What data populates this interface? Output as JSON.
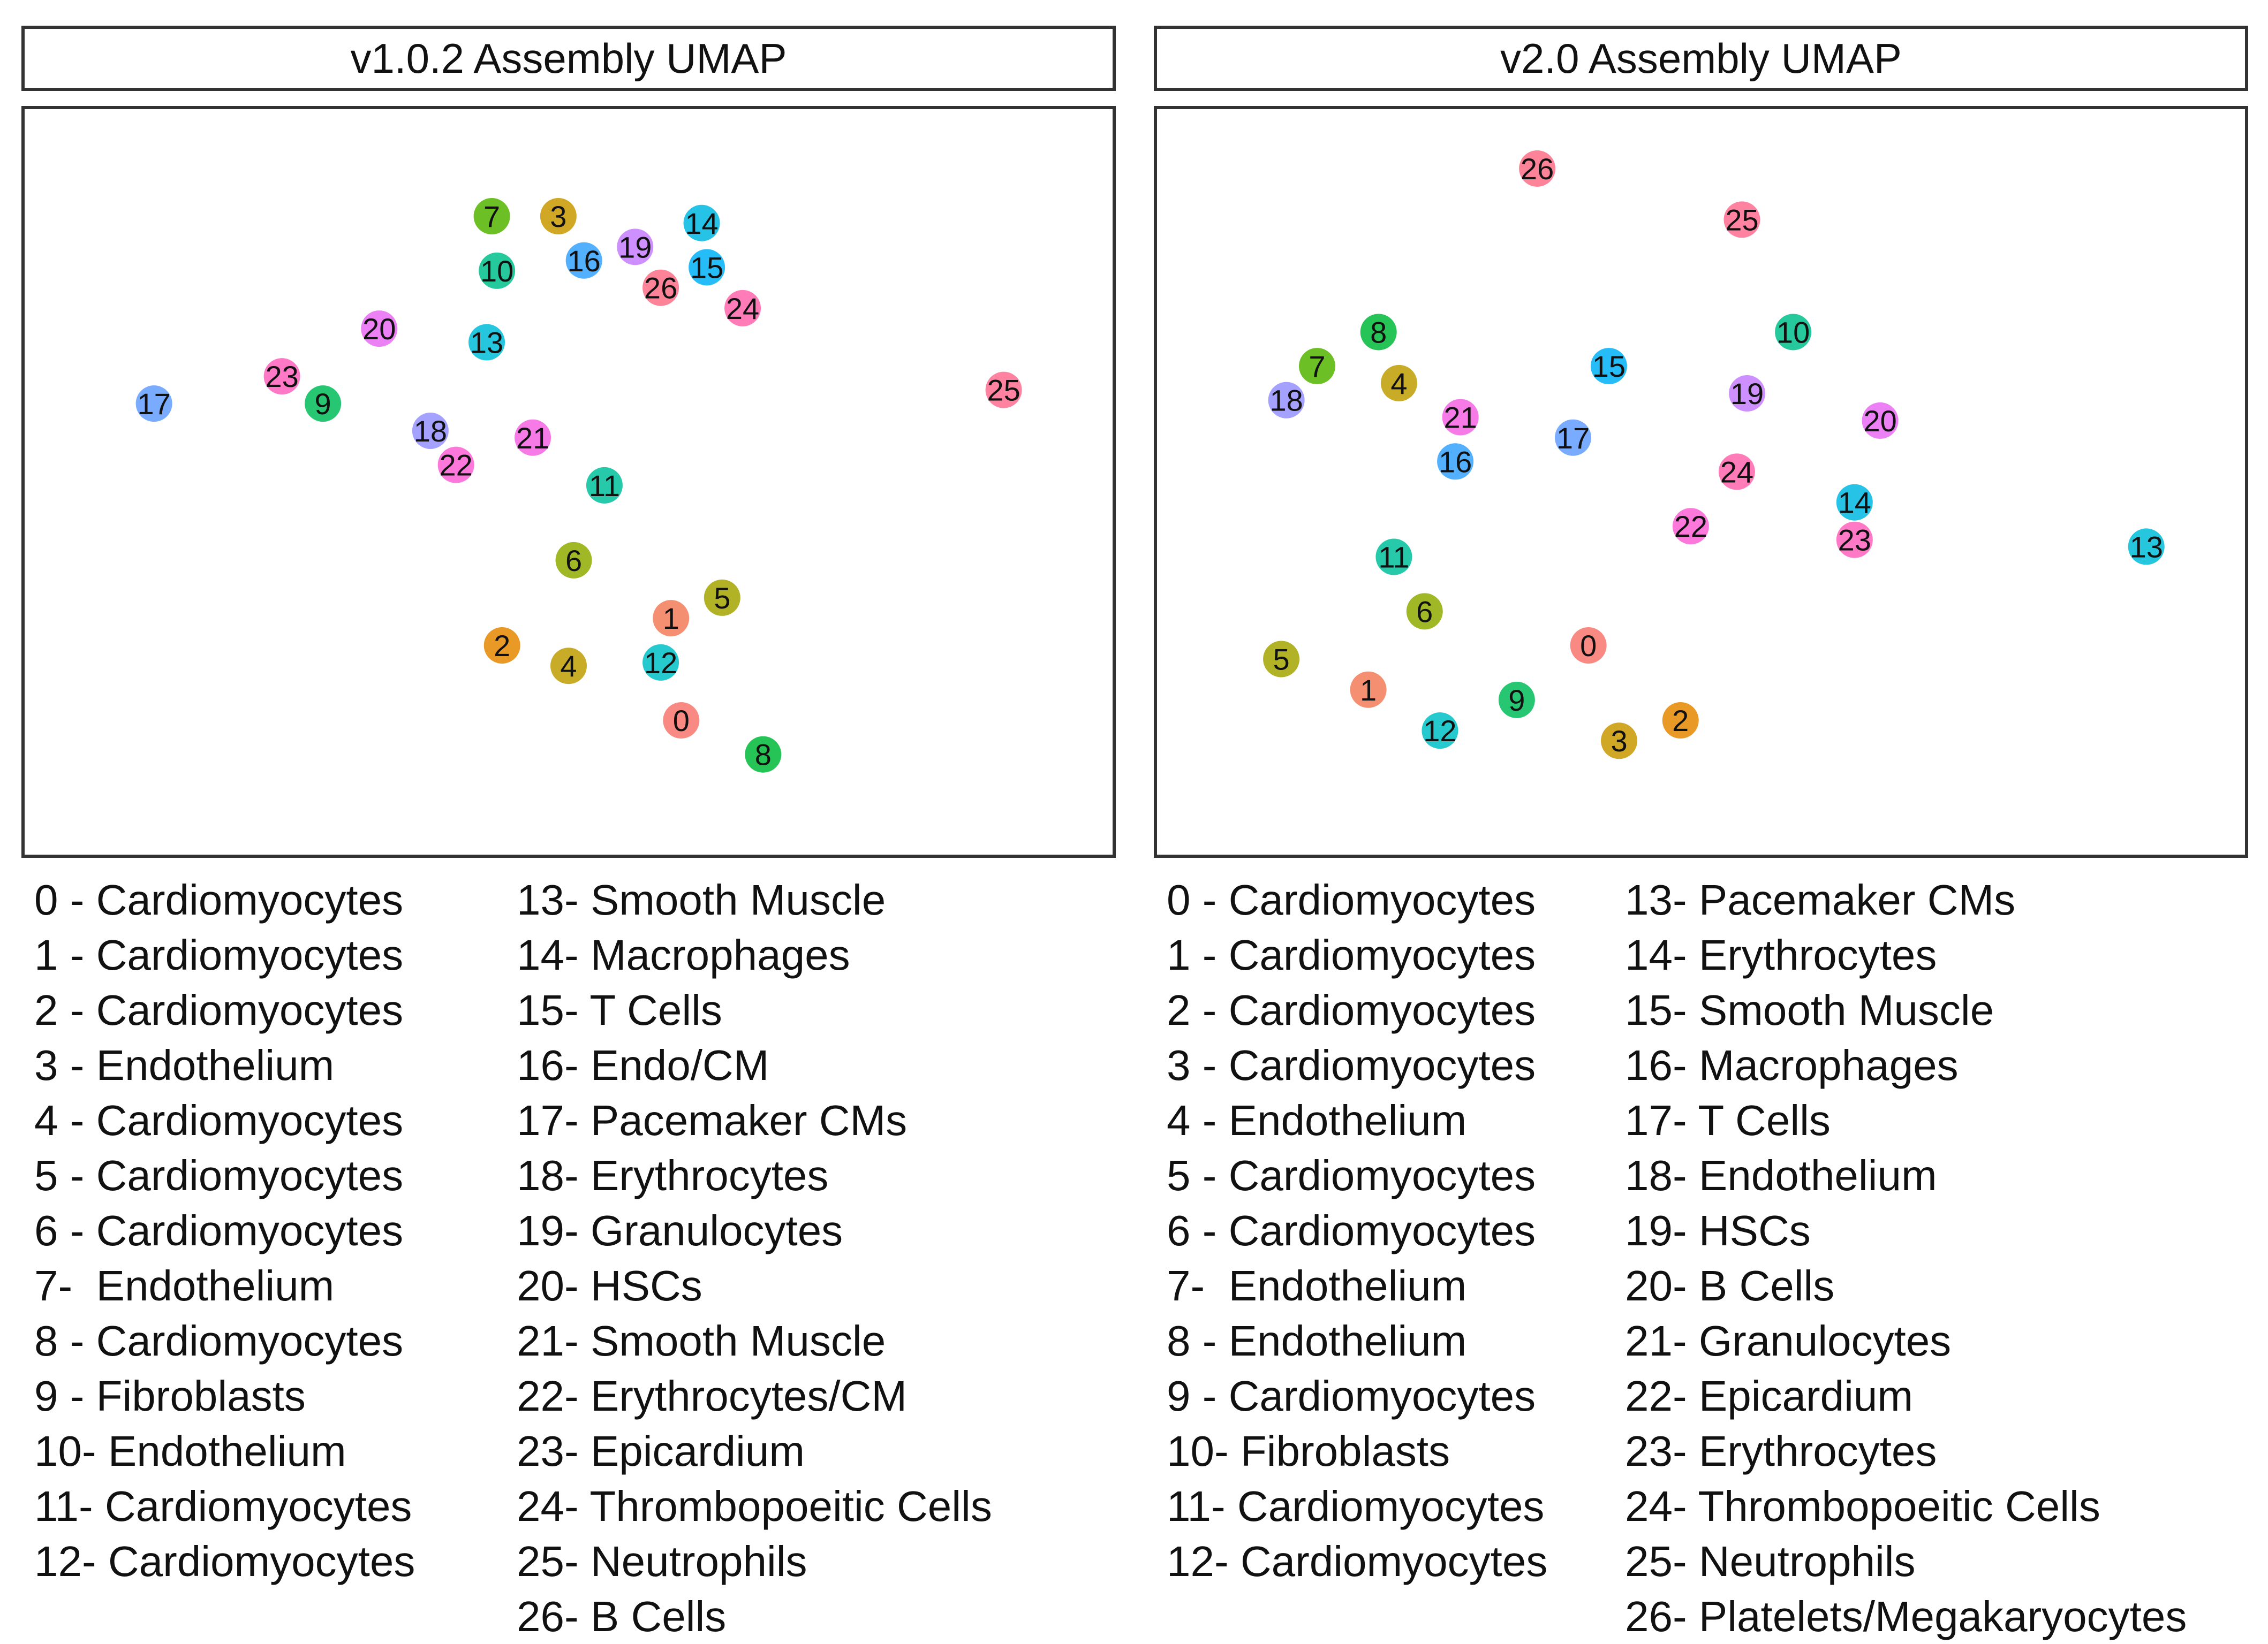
{
  "chart_data": [
    {
      "type": "scatter",
      "title": "v1.0.2 Assembly UMAP",
      "xlabel": "",
      "ylabel": "",
      "xlim": [
        0,
        100
      ],
      "ylim": [
        0,
        100
      ],
      "clusters": [
        {
          "id": "0",
          "x": 61.0,
          "y": 15.0,
          "color": "#F8766D"
        },
        {
          "id": "1",
          "x": 60.0,
          "y": 30.0,
          "color": "#F37B59"
        },
        {
          "id": "2",
          "x": 43.5,
          "y": 26.0,
          "color": "#E58700"
        },
        {
          "id": "3",
          "x": 49.0,
          "y": 89.0,
          "color": "#C99800"
        },
        {
          "id": "4",
          "x": 50.0,
          "y": 23.0,
          "color": "#BE9C00"
        },
        {
          "id": "5",
          "x": 65.0,
          "y": 33.0,
          "color": "#A3A500"
        },
        {
          "id": "6",
          "x": 50.5,
          "y": 38.5,
          "color": "#8FAA00"
        },
        {
          "id": "7",
          "x": 42.5,
          "y": 89.0,
          "color": "#53B400"
        },
        {
          "id": "8",
          "x": 69.0,
          "y": 10.0,
          "color": "#00BA38"
        },
        {
          "id": "9",
          "x": 26.0,
          "y": 61.5,
          "color": "#00BC59"
        },
        {
          "id": "10",
          "x": 43.0,
          "y": 81.0,
          "color": "#00C08B"
        },
        {
          "id": "11",
          "x": 53.5,
          "y": 49.5,
          "color": "#00BF9B"
        },
        {
          "id": "12",
          "x": 59.0,
          "y": 23.5,
          "color": "#00BFC4"
        },
        {
          "id": "13",
          "x": 42.0,
          "y": 70.5,
          "color": "#00BCD8"
        },
        {
          "id": "14",
          "x": 63.0,
          "y": 88.0,
          "color": "#00B9E3"
        },
        {
          "id": "15",
          "x": 63.5,
          "y": 81.5,
          "color": "#00B0F6"
        },
        {
          "id": "16",
          "x": 51.5,
          "y": 82.5,
          "color": "#35A2FF"
        },
        {
          "id": "17",
          "x": 9.5,
          "y": 61.5,
          "color": "#619CFF"
        },
        {
          "id": "18",
          "x": 36.5,
          "y": 57.5,
          "color": "#9590FF"
        },
        {
          "id": "19",
          "x": 56.5,
          "y": 84.5,
          "color": "#C77CFF"
        },
        {
          "id": "20",
          "x": 31.5,
          "y": 72.5,
          "color": "#E76BF3"
        },
        {
          "id": "21",
          "x": 46.5,
          "y": 56.5,
          "color": "#F564E3"
        },
        {
          "id": "22",
          "x": 39.0,
          "y": 52.5,
          "color": "#FC61D5"
        },
        {
          "id": "23",
          "x": 22.0,
          "y": 65.5,
          "color": "#FF62BC"
        },
        {
          "id": "24",
          "x": 67.0,
          "y": 75.5,
          "color": "#FF65AC"
        },
        {
          "id": "25",
          "x": 92.5,
          "y": 63.5,
          "color": "#FF6C91"
        },
        {
          "id": "26",
          "x": 59.0,
          "y": 78.5,
          "color": "#FD6F86"
        }
      ],
      "legend": [
        [
          "0 - Cardiomyocytes",
          "1 - Cardiomyocytes",
          "2 - Cardiomyocytes",
          "3 - Endothelium",
          "4 - Cardiomyocytes",
          "5 - Cardiomyocytes",
          "6 - Cardiomyocytes",
          "7-  Endothelium",
          "8 - Cardiomyocytes",
          "9 - Fibroblasts",
          "10- Endothelium",
          "11- Cardiomyocytes",
          "12- Cardiomyocytes"
        ],
        [
          "13- Smooth Muscle",
          "14- Macrophages",
          "15- T Cells",
          "16- Endo/CM",
          "17- Pacemaker CMs",
          "18- Erythrocytes",
          "19- Granulocytes",
          "20- HSCs",
          "21- Smooth Muscle",
          "22- Erythrocytes/CM",
          "23- Epicardium",
          "24- Thrombopoeitic Cells",
          "25- Neutrophils",
          "26- B Cells"
        ]
      ]
    },
    {
      "type": "scatter",
      "title": "v2.0 Assembly UMAP",
      "xlabel": "",
      "ylabel": "",
      "xlim": [
        0,
        100
      ],
      "ylim": [
        0,
        100
      ],
      "clusters": [
        {
          "id": "0",
          "x": 39.0,
          "y": 26.0,
          "color": "#F8766D"
        },
        {
          "id": "1",
          "x": 17.5,
          "y": 19.5,
          "color": "#F37B59"
        },
        {
          "id": "2",
          "x": 48.0,
          "y": 15.0,
          "color": "#E58700"
        },
        {
          "id": "3",
          "x": 42.0,
          "y": 12.0,
          "color": "#C99800"
        },
        {
          "id": "4",
          "x": 20.5,
          "y": 64.5,
          "color": "#BE9C00"
        },
        {
          "id": "5",
          "x": 9.0,
          "y": 24.0,
          "color": "#A3A500"
        },
        {
          "id": "6",
          "x": 23.0,
          "y": 31.0,
          "color": "#8FAA00"
        },
        {
          "id": "7",
          "x": 12.5,
          "y": 67.0,
          "color": "#53B400"
        },
        {
          "id": "8",
          "x": 18.5,
          "y": 72.0,
          "color": "#00BA38"
        },
        {
          "id": "9",
          "x": 32.0,
          "y": 18.0,
          "color": "#00BC59"
        },
        {
          "id": "10",
          "x": 59.0,
          "y": 72.0,
          "color": "#00C08B"
        },
        {
          "id": "11",
          "x": 20.0,
          "y": 39.0,
          "color": "#00BF9B"
        },
        {
          "id": "12",
          "x": 24.5,
          "y": 13.5,
          "color": "#00BFC4"
        },
        {
          "id": "13",
          "x": 93.5,
          "y": 40.5,
          "color": "#00BCD8"
        },
        {
          "id": "14",
          "x": 65.0,
          "y": 47.0,
          "color": "#00B9E3"
        },
        {
          "id": "15",
          "x": 41.0,
          "y": 67.0,
          "color": "#00B0F6"
        },
        {
          "id": "16",
          "x": 26.0,
          "y": 53.0,
          "color": "#35A2FF"
        },
        {
          "id": "17",
          "x": 37.5,
          "y": 56.5,
          "color": "#619CFF"
        },
        {
          "id": "18",
          "x": 9.5,
          "y": 62.0,
          "color": "#9590FF"
        },
        {
          "id": "19",
          "x": 54.5,
          "y": 63.0,
          "color": "#C77CFF"
        },
        {
          "id": "20",
          "x": 67.5,
          "y": 59.0,
          "color": "#E76BF3"
        },
        {
          "id": "21",
          "x": 26.5,
          "y": 59.5,
          "color": "#F564E3"
        },
        {
          "id": "22",
          "x": 49.0,
          "y": 43.5,
          "color": "#FC61D5"
        },
        {
          "id": "23",
          "x": 65.0,
          "y": 41.5,
          "color": "#FF62BC"
        },
        {
          "id": "24",
          "x": 53.5,
          "y": 51.5,
          "color": "#FF65AC"
        },
        {
          "id": "25",
          "x": 54.0,
          "y": 88.5,
          "color": "#FF6C91"
        },
        {
          "id": "26",
          "x": 34.0,
          "y": 96.0,
          "color": "#FD6F86"
        }
      ],
      "legend": [
        [
          "0 - Cardiomyocytes",
          "1 - Cardiomyocytes",
          "2 - Cardiomyocytes",
          "3 - Cardiomyocytes",
          "4 - Endothelium",
          "5 - Cardiomyocytes",
          "6 - Cardiomyocytes",
          "7-  Endothelium",
          "8 - Endothelium",
          "9 - Cardiomyocytes",
          "10- Fibroblasts",
          "11- Cardiomyocytes",
          "12- Cardiomyocytes"
        ],
        [
          "13- Pacemaker CMs",
          "14- Erythrocytes",
          "15- Smooth Muscle",
          "16- Macrophages",
          "17- T Cells",
          "18- Endothelium",
          "19- HSCs",
          "20- B Cells",
          "21- Granulocytes",
          "22- Epicardium",
          "23- Erythrocytes",
          "24- Thrombopoeitic Cells",
          "25- Neutrophils",
          "26- Platelets/Megakaryocytes"
        ]
      ]
    }
  ]
}
